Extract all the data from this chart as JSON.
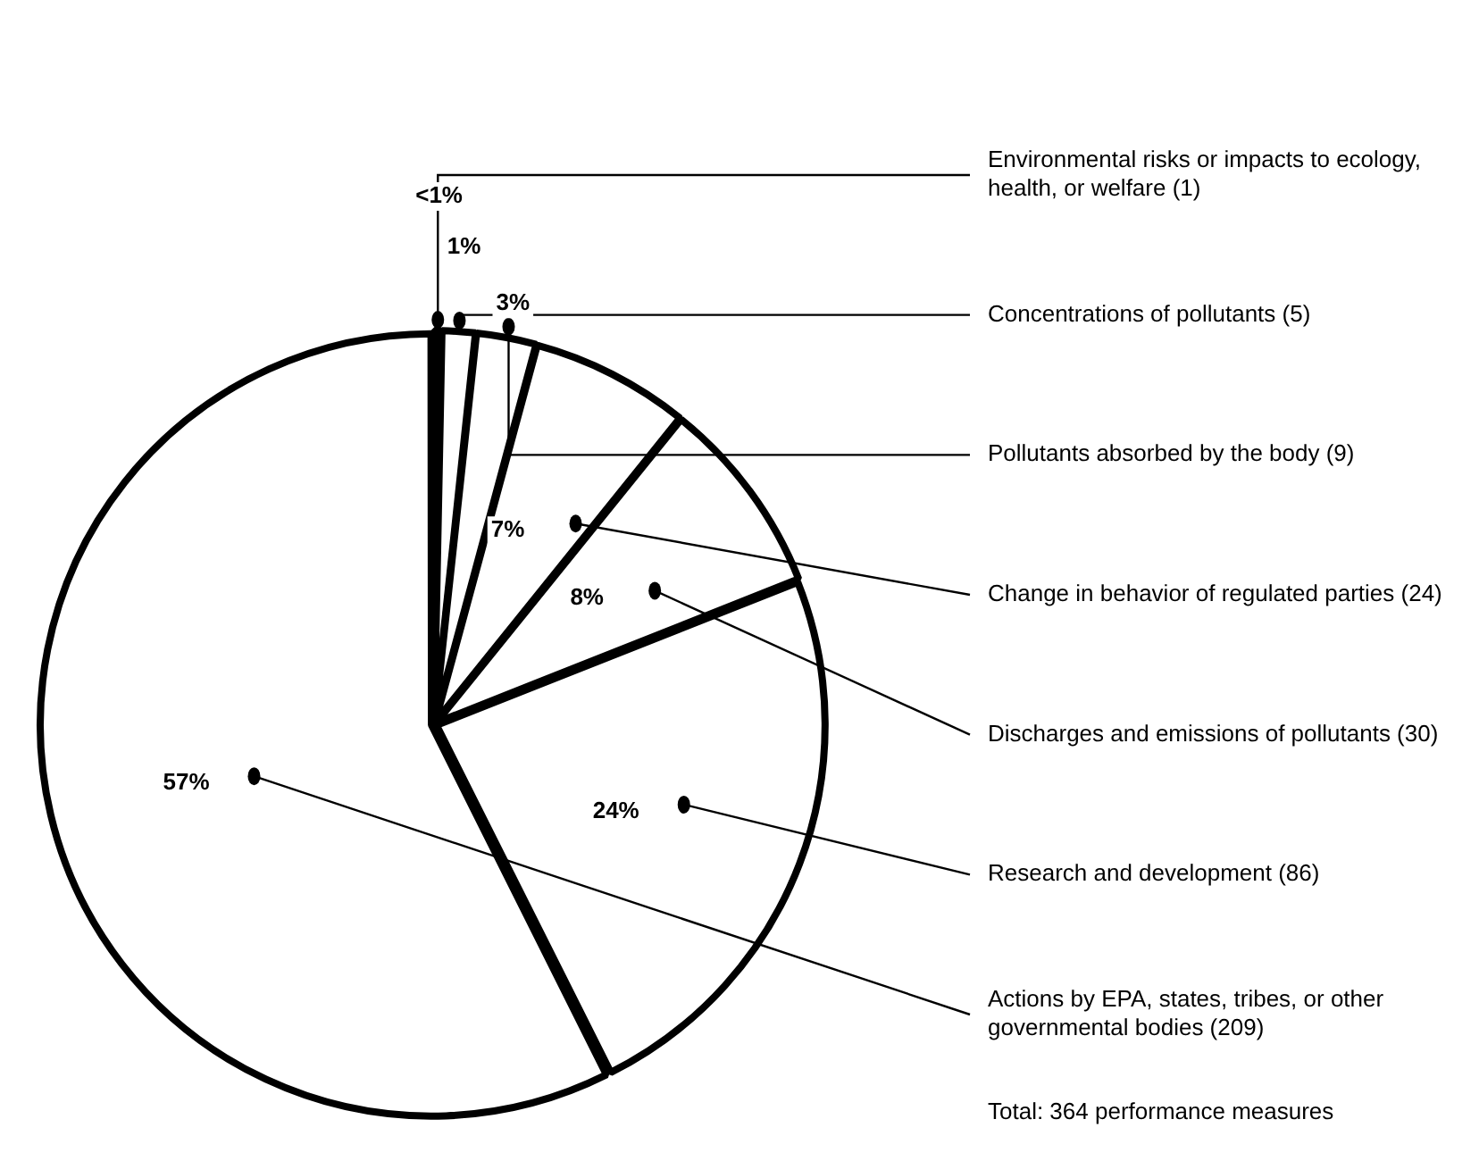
{
  "chart_data": {
    "type": "pie",
    "categories": [
      "Environmental risks or impacts to ecology, health, or welfare (1)",
      "Concentrations of pollutants (5)",
      "Pollutants absorbed by the body (9)",
      "Change in behavior of regulated parties (24)",
      "Discharges and emissions of pollutants (30)",
      "Research and development (86)",
      "Actions by EPA, states, tribes, or other governmental bodies (209)"
    ],
    "values": [
      0.3,
      1.4,
      2.5,
      6.6,
      8.2,
      23.6,
      57.4
    ],
    "value_labels": [
      "<1%",
      "1%",
      "3%",
      "7%",
      "8%",
      "24%",
      "57%"
    ],
    "colors": [
      "#ffffff",
      "#ffffff",
      "#ffffff",
      "#ffffff",
      "#ffffff",
      "#ffffff",
      "#ffffff"
    ],
    "annotations": [
      "Total: 364 performance measures"
    ]
  }
}
